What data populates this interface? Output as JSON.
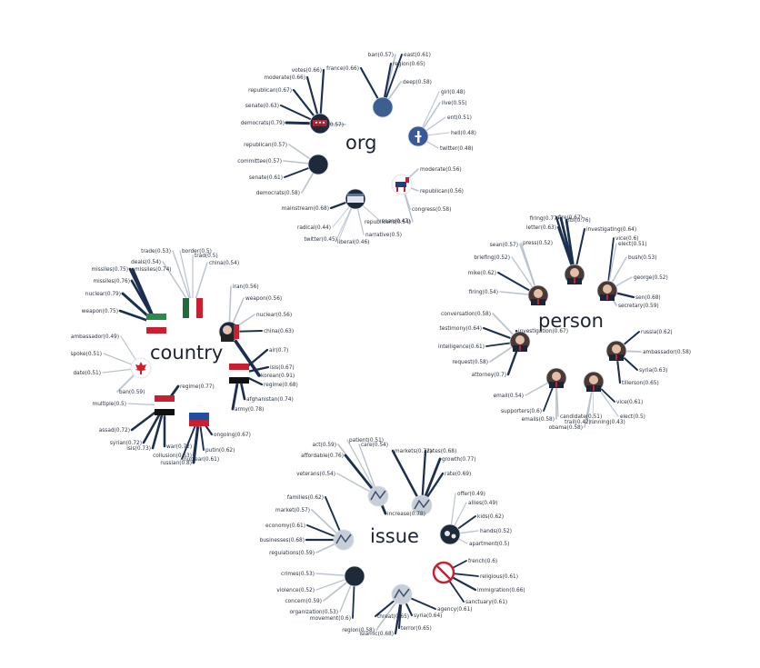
{
  "colors": {
    "line_dark": "#1c2f4f",
    "line_light": "#b9c3cf",
    "node_dark": "#1e2a3a",
    "text": "#2b3340"
  },
  "clusters": [
    {
      "label": "org",
      "nodes": [
        {
          "icon": "republican-elephant-icon",
          "terms": [
            {
              "t": "democrats(0.79)",
              "s": 0.79
            },
            {
              "t": "senate(0.63)",
              "s": 0.63
            },
            {
              "t": "republican(0.67)",
              "s": 0.67
            },
            {
              "t": "moderate(0.66)",
              "s": 0.66
            },
            {
              "t": "votes(0.66)",
              "s": 0.66
            },
            {
              "t": "icans(0.57)",
              "s": 0.57
            }
          ]
        },
        {
          "icon": "blue-dotted-circle-icon",
          "terms": [
            {
              "t": "france(0.66)",
              "s": 0.66
            },
            {
              "t": "ban(0.57)",
              "s": 0.57
            },
            {
              "t": "east(0.61)",
              "s": 0.61
            },
            {
              "t": "region(0.65)",
              "s": 0.65
            },
            {
              "t": "deep(0.58)",
              "s": 0.58
            }
          ]
        },
        {
          "icon": "facebook-logo-icon",
          "terms": [
            {
              "t": "girl(0.48)",
              "s": 0.48
            },
            {
              "t": "live(0.55)",
              "s": 0.55
            },
            {
              "t": "ent(0.51)",
              "s": 0.51
            },
            {
              "t": "hell(0.48)",
              "s": 0.48
            },
            {
              "t": "twitter(0.48)",
              "s": 0.48
            }
          ]
        },
        {
          "icon": "dark-circle-icon",
          "terms": [
            {
              "t": "republican(0.57)",
              "s": 0.57
            },
            {
              "t": "committee(0.57)",
              "s": 0.57
            },
            {
              "t": "senate(0.61)",
              "s": 0.61
            },
            {
              "t": "democrats(0.58)",
              "s": 0.58
            }
          ]
        },
        {
          "icon": "democrat-donkey-icon",
          "terms": [
            {
              "t": "moderate(0.56)",
              "s": 0.56
            },
            {
              "t": "republican(0.56)",
              "s": 0.56
            },
            {
              "t": "congress(0.58)",
              "s": 0.58
            },
            {
              "t": "republicans(0.54)",
              "s": 0.54
            }
          ]
        },
        {
          "icon": "breaking-news-icon",
          "terms": [
            {
              "t": "mainstream(0.68)",
              "s": 0.68
            },
            {
              "t": "radical(0.44)",
              "s": 0.44
            },
            {
              "t": "twitter(0.45)",
              "s": 0.45
            },
            {
              "t": "liberal(0.46)",
              "s": 0.46
            },
            {
              "t": "narrative(0.5)",
              "s": 0.5
            },
            {
              "t": "sean(0.47)",
              "s": 0.47
            }
          ]
        }
      ]
    },
    {
      "label": "country",
      "nodes": [
        {
          "icon": "mexico-flag-icon",
          "terms": [
            {
              "t": "trade(0.53)",
              "s": 0.53
            },
            {
              "t": "deals(0.54)",
              "s": 0.54
            },
            {
              "t": "border(0.5)",
              "s": 0.5
            },
            {
              "t": "trad(0.5)",
              "s": 0.5
            },
            {
              "t": "china(0.54)",
              "s": 0.54
            }
          ]
        },
        {
          "icon": "iran-flag-icon",
          "terms": [
            {
              "t": "missiles(0.75)",
              "s": 0.75
            },
            {
              "t": "missiles(0.74)",
              "s": 0.74
            },
            {
              "t": "missiles(0.76)",
              "s": 0.76
            },
            {
              "t": "nuclear(0.79)",
              "s": 0.79
            },
            {
              "t": "weapon(0.75)",
              "s": 0.75
            }
          ]
        },
        {
          "icon": "north-korea-leader-icon",
          "terms": [
            {
              "t": "iran(0.56)",
              "s": 0.56
            },
            {
              "t": "weapon(0.56)",
              "s": 0.56
            },
            {
              "t": "nuclear(0.56)",
              "s": 0.56
            },
            {
              "t": "china(0.63)",
              "s": 0.63
            },
            {
              "t": "korean(0.91)",
              "s": 0.91
            }
          ]
        },
        {
          "icon": "canada-maple-leaf-icon",
          "terms": [
            {
              "t": "ambassador(0.49)",
              "s": 0.49
            },
            {
              "t": "spoke(0.51)",
              "s": 0.51
            },
            {
              "t": "date(0.51)",
              "s": 0.51
            },
            {
              "t": "ban(0.59)",
              "s": 0.59
            }
          ]
        },
        {
          "icon": "iraq-flag-icon",
          "terms": [
            {
              "t": "air(0.7)",
              "s": 0.7
            },
            {
              "t": "isis(0.67)",
              "s": 0.67
            },
            {
              "t": "regime(0.68)",
              "s": 0.68
            },
            {
              "t": "afghanistan(0.74)",
              "s": 0.74
            },
            {
              "t": "army(0.78)",
              "s": 0.78
            }
          ]
        },
        {
          "icon": "syria-flag-icon",
          "terms": [
            {
              "t": "multiple(0.5)",
              "s": 0.5
            },
            {
              "t": "assad(0.72)",
              "s": 0.72
            },
            {
              "t": "syrian(0.72)",
              "s": 0.72
            },
            {
              "t": "isis(0.73)",
              "s": 0.73
            },
            {
              "t": "war(0.72)",
              "s": 0.72
            },
            {
              "t": "regime(0.77)",
              "s": 0.77
            }
          ]
        },
        {
          "icon": "russia-flag-icon",
          "terms": [
            {
              "t": "ongoing(0.67)",
              "s": 0.67
            },
            {
              "t": "putin(0.62)",
              "s": 0.62
            },
            {
              "t": "collusion(0.63)",
              "s": 0.63
            },
            {
              "t": "nuclear(0.61)",
              "s": 0.61
            },
            {
              "t": "russian(0.8)",
              "s": 0.8
            }
          ]
        }
      ]
    },
    {
      "label": "person",
      "nodes": [
        {
          "icon": "person-portrait-icon",
          "terms": [
            {
              "t": "firing(0.77)",
              "s": 0.77
            },
            {
              "t": "fire(0.67)",
              "s": 0.67
            },
            {
              "t": "fbi(0.76)",
              "s": 0.76
            },
            {
              "t": "letter(0.63)",
              "s": 0.63
            },
            {
              "t": "investigating(0.64)",
              "s": 0.64
            }
          ]
        },
        {
          "icon": "person-portrait-icon",
          "terms": [
            {
              "t": "sean(0.57)",
              "s": 0.57
            },
            {
              "t": "press(0.52)",
              "s": 0.52
            },
            {
              "t": "briefing(0.52)",
              "s": 0.52
            },
            {
              "t": "mike(0.62)",
              "s": 0.62
            },
            {
              "t": "firing(0.54)",
              "s": 0.54
            }
          ]
        },
        {
          "icon": "person-portrait-icon",
          "terms": [
            {
              "t": "vice(0.6)",
              "s": 0.6
            },
            {
              "t": "elect(0.51)",
              "s": 0.51
            },
            {
              "t": "bush(0.53)",
              "s": 0.53
            },
            {
              "t": "george(0.52)",
              "s": 0.52
            },
            {
              "t": "sen(0.68)",
              "s": 0.68
            },
            {
              "t": "secretary(0.59)",
              "s": 0.59
            }
          ]
        },
        {
          "icon": "person-portrait-icon",
          "terms": [
            {
              "t": "conversation(0.58)",
              "s": 0.58
            },
            {
              "t": "testimony(0.64)",
              "s": 0.64
            },
            {
              "t": "intelligence(0.61)",
              "s": 0.61
            },
            {
              "t": "request(0.58)",
              "s": 0.58
            },
            {
              "t": "attorney(0.7)",
              "s": 0.7
            },
            {
              "t": "investigation(0.67)",
              "s": 0.67
            }
          ]
        },
        {
          "icon": "person-portrait-icon",
          "terms": [
            {
              "t": "russia(0.62)",
              "s": 0.62
            },
            {
              "t": "ambassador(0.58)",
              "s": 0.58
            },
            {
              "t": "syria(0.63)",
              "s": 0.63
            },
            {
              "t": "tillerson(0.65)",
              "s": 0.65
            }
          ]
        },
        {
          "icon": "person-portrait-icon",
          "terms": [
            {
              "t": "email(0.54)",
              "s": 0.54
            },
            {
              "t": "supporters(0.6)",
              "s": 0.6
            },
            {
              "t": "emails(0.58)",
              "s": 0.58
            },
            {
              "t": "candidate(0.51)",
              "s": 0.51
            }
          ]
        },
        {
          "icon": "person-portrait-icon",
          "terms": [
            {
              "t": "vice(0.61)",
              "s": 0.61
            },
            {
              "t": "elect(0.5)",
              "s": 0.5
            },
            {
              "t": "running(0.43)",
              "s": 0.43
            },
            {
              "t": "obama(0.58)",
              "s": 0.58
            },
            {
              "t": "trail(0.42)",
              "s": 0.42
            }
          ]
        }
      ]
    },
    {
      "label": "issue",
      "nodes": [
        {
          "icon": "healthcare-image-icon",
          "terms": [
            {
              "t": "patient(0.51)",
              "s": 0.51
            },
            {
              "t": "care(0.54)",
              "s": 0.54
            },
            {
              "t": "act(0.59)",
              "s": 0.59
            },
            {
              "t": "affordable(0.76)",
              "s": 0.76
            },
            {
              "t": "veterans(0.54)",
              "s": 0.54
            },
            {
              "t": "increase(0.78)",
              "s": 0.78
            }
          ]
        },
        {
          "icon": "economy-image-icon",
          "terms": [
            {
              "t": "markets(0.72)",
              "s": 0.72
            },
            {
              "t": "rates(0.68)",
              "s": 0.68
            },
            {
              "t": "growth(0.77)",
              "s": 0.77
            },
            {
              "t": "rate(0.69)",
              "s": 0.69
            }
          ]
        },
        {
          "icon": "business-image-icon",
          "terms": [
            {
              "t": "families(0.62)",
              "s": 0.62
            },
            {
              "t": "market(0.57)",
              "s": 0.57
            },
            {
              "t": "economy(0.61)",
              "s": 0.61
            },
            {
              "t": "businesses(0.68)",
              "s": 0.68
            },
            {
              "t": "regulations(0.59)",
              "s": 0.59
            }
          ]
        },
        {
          "icon": "immigration-image-icon",
          "terms": [
            {
              "t": "offer(0.49)",
              "s": 0.49
            },
            {
              "t": "allies(0.49)",
              "s": 0.49
            },
            {
              "t": "kids(0.62)",
              "s": 0.62
            },
            {
              "t": "hands(0.52)",
              "s": 0.52
            },
            {
              "t": "apartment(0.5)",
              "s": 0.5
            }
          ]
        },
        {
          "icon": "no-symbol-icon",
          "terms": [
            {
              "t": "french(0.6)",
              "s": 0.6
            },
            {
              "t": "religious(0.61)",
              "s": 0.61
            },
            {
              "t": "immigration(0.66)",
              "s": 0.66
            },
            {
              "t": "sanctuary(0.61)",
              "s": 0.61
            }
          ]
        },
        {
          "icon": "dark-circle-icon",
          "terms": [
            {
              "t": "crimes(0.53)",
              "s": 0.53
            },
            {
              "t": "violence(0.52)",
              "s": 0.52
            },
            {
              "t": "concern(0.59)",
              "s": 0.59
            },
            {
              "t": "organization(0.53)",
              "s": 0.53
            },
            {
              "t": "movement(0.6)",
              "s": 0.6
            }
          ]
        },
        {
          "icon": "terror-image-icon",
          "terms": [
            {
              "t": "threat(0.65)",
              "s": 0.65
            },
            {
              "t": "region(0.58)",
              "s": 0.58
            },
            {
              "t": "islamic(0.68)",
              "s": 0.68
            },
            {
              "t": "terror(0.65)",
              "s": 0.65
            },
            {
              "t": "syria(0.64)",
              "s": 0.64
            },
            {
              "t": "agency(0.61)",
              "s": 0.61
            }
          ]
        }
      ]
    }
  ]
}
